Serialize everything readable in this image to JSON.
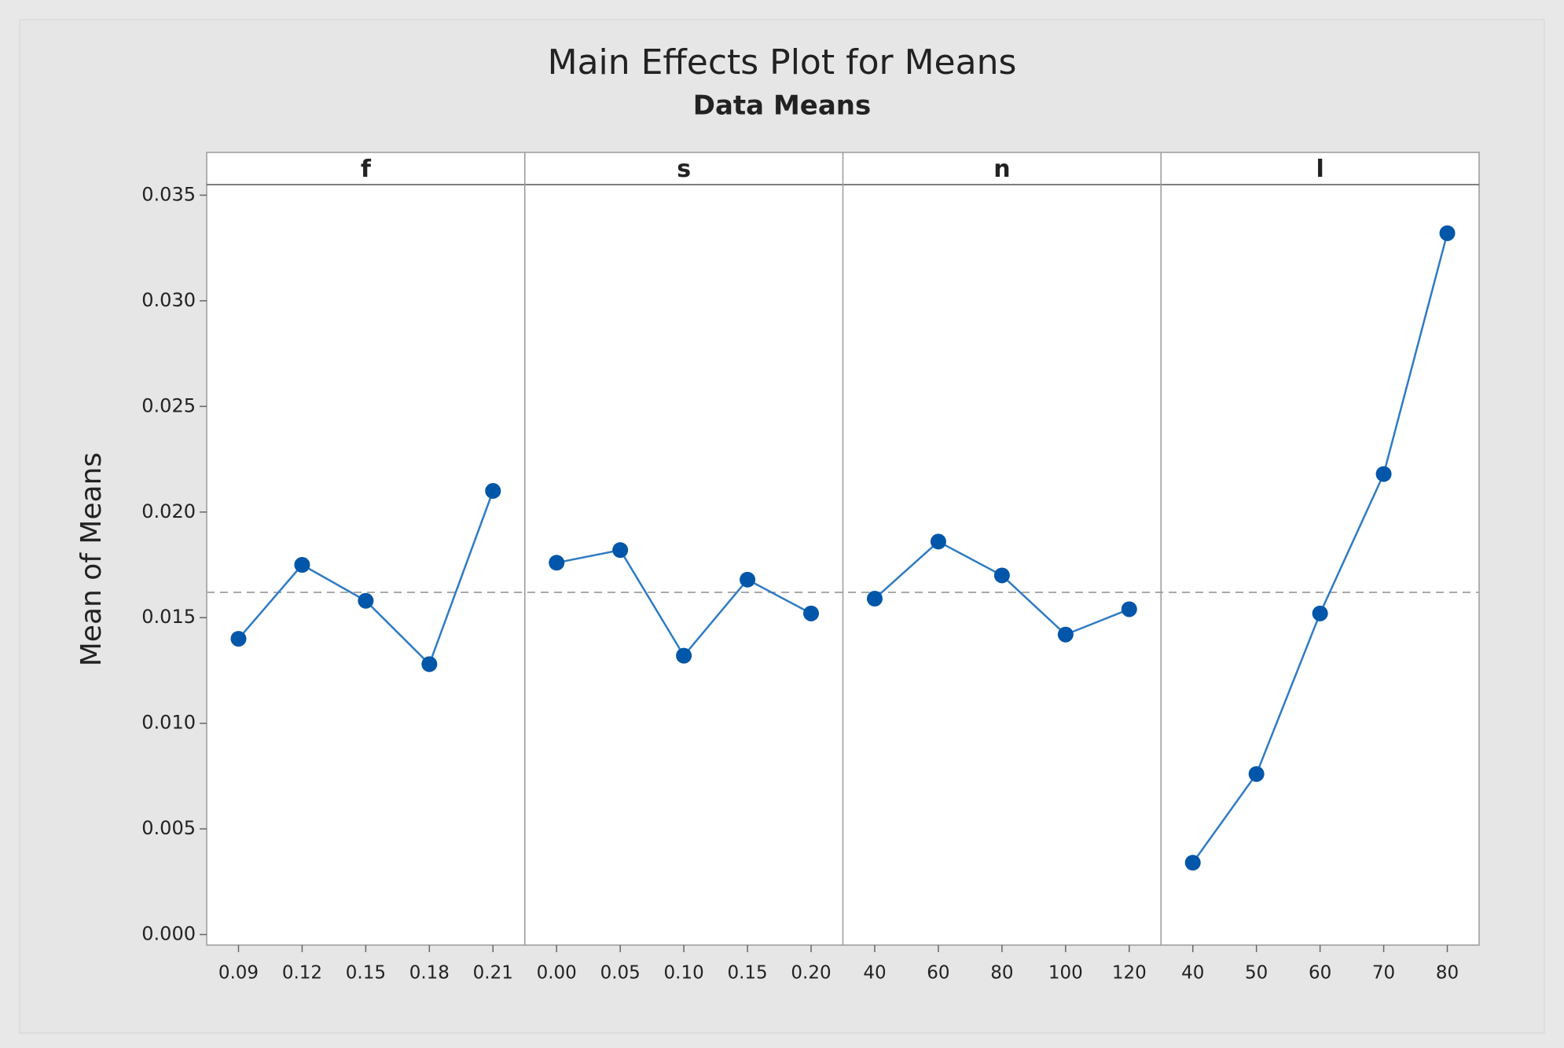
{
  "chart_data": {
    "type": "line",
    "title": "Main Effects Plot for Means",
    "subtitle": "Data Means",
    "y_label": "Mean of Means",
    "ylim": [
      -0.0005,
      0.0355
    ],
    "yticks": [
      {
        "value": 0,
        "label": "0.000"
      },
      {
        "value": 0.005,
        "label": "0.005"
      },
      {
        "value": 0.01,
        "label": "0.010"
      },
      {
        "value": 0.015,
        "label": "0.015"
      },
      {
        "value": 0.02,
        "label": "0.020"
      },
      {
        "value": 0.025,
        "label": "0.025"
      },
      {
        "value": 0.03,
        "label": "0.030"
      },
      {
        "value": 0.035,
        "label": "0.035"
      }
    ],
    "reference_line": 0.0162,
    "line_color": "#2e7bc4",
    "marker_color": "#0056a8",
    "panels": [
      {
        "name": "f",
        "categories": [
          "0.09",
          "0.12",
          "0.15",
          "0.18",
          "0.21"
        ],
        "values": [
          0.014,
          0.0175,
          0.0158,
          0.0128,
          0.021
        ]
      },
      {
        "name": "s",
        "categories": [
          "0.00",
          "0.05",
          "0.10",
          "0.15",
          "0.20"
        ],
        "values": [
          0.0176,
          0.0182,
          0.0132,
          0.0168,
          0.0152
        ]
      },
      {
        "name": "n",
        "categories": [
          "40",
          "60",
          "80",
          "100",
          "120"
        ],
        "values": [
          0.0159,
          0.0186,
          0.017,
          0.0142,
          0.0154
        ]
      },
      {
        "name": "l",
        "categories": [
          "40",
          "50",
          "60",
          "70",
          "80"
        ],
        "values": [
          0.0034,
          0.0076,
          0.0152,
          0.0218,
          0.0332
        ]
      }
    ]
  }
}
